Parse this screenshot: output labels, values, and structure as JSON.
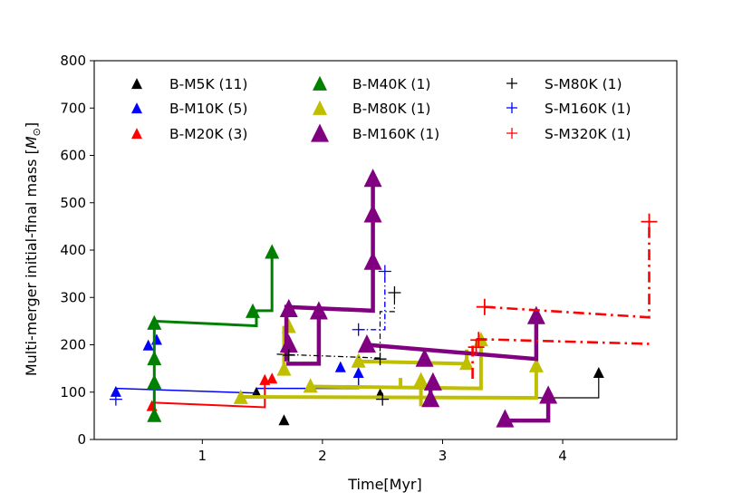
{
  "chart_data": {
    "type": "scatter",
    "title": "",
    "xlabel": "Time[Myr]",
    "ylabel": "Multi-merger initial-final mass [",
    "ylabel_unit_symbol": "M",
    "ylabel_unit_sub": "⊙",
    "ylabel_close": "]",
    "xlim": [
      0.1,
      4.95
    ],
    "ylim": [
      0,
      800
    ],
    "xticks": [
      1,
      2,
      3,
      4
    ],
    "yticks": [
      0,
      100,
      200,
      300,
      400,
      500,
      600,
      700,
      800
    ],
    "grid": false,
    "legend_position": "top",
    "legend": [
      {
        "label": "B-M5K (11)",
        "color": "#000000",
        "marker": "triangle",
        "size": "small"
      },
      {
        "label": "B-M10K (5)",
        "color": "#0000ff",
        "marker": "triangle",
        "size": "small"
      },
      {
        "label": "B-M20K (3)",
        "color": "#ff0000",
        "marker": "triangle",
        "size": "small"
      },
      {
        "label": "B-M40K (1)",
        "color": "#008000",
        "marker": "triangle",
        "size": "medium"
      },
      {
        "label": "B-M80K (1)",
        "color": "#bfbf00",
        "marker": "triangle",
        "size": "medium"
      },
      {
        "label": "B-M160K (1)",
        "color": "#800080",
        "marker": "triangle",
        "size": "large"
      },
      {
        "label": "S-M80K (1)",
        "color": "#000000",
        "marker": "plus",
        "size": "small"
      },
      {
        "label": "S-M160K (1)",
        "color": "#0000ff",
        "marker": "plus",
        "size": "small"
      },
      {
        "label": "S-M320K (1)",
        "color": "#ff0000",
        "marker": "plus",
        "size": "small"
      }
    ],
    "series": [
      {
        "name": "B-M5K (11)",
        "color": "#000000",
        "marker": "triangle",
        "size": 6,
        "width": 1.2,
        "dash": "",
        "lines": [
          [
            [
              2.48,
              88
            ],
            [
              4.3,
              88
            ],
            [
              4.3,
              140
            ]
          ]
        ],
        "points": [
          [
            1.68,
            40
          ],
          [
            1.68,
            150
          ],
          [
            2.48,
            95
          ],
          [
            4.3,
            140
          ],
          [
            1.45,
            98
          ]
        ]
      },
      {
        "name": "B-M10K (5)",
        "color": "#0000ff",
        "marker": "triangle",
        "size": 6,
        "width": 1.5,
        "dash": "",
        "lines": [
          [
            [
              0.28,
              108
            ],
            [
              1.45,
              98
            ]
          ],
          [
            [
              1.45,
              108
            ],
            [
              2.3,
              108
            ],
            [
              2.3,
              140
            ]
          ]
        ],
        "points": [
          [
            0.28,
            100
          ],
          [
            0.55,
            198
          ],
          [
            0.62,
            210
          ],
          [
            2.15,
            152
          ],
          [
            2.3,
            140
          ]
        ]
      },
      {
        "name": "B-M20K (3)",
        "color": "#ff0000",
        "marker": "triangle",
        "size": 6,
        "width": 2,
        "dash": "",
        "lines": [
          [
            [
              0.58,
              78
            ],
            [
              1.52,
              68
            ],
            [
              1.52,
              125
            ]
          ]
        ],
        "points": [
          [
            0.58,
            70
          ],
          [
            1.52,
            125
          ],
          [
            1.58,
            128
          ]
        ]
      },
      {
        "name": "B-M40K (1)",
        "color": "#008000",
        "marker": "triangle",
        "size": 8,
        "width": 3,
        "dash": "",
        "lines": [
          [
            [
              0.6,
              50
            ],
            [
              0.6,
              250
            ],
            [
              1.45,
              240
            ],
            [
              1.45,
              272
            ],
            [
              1.58,
              272
            ],
            [
              1.58,
              395
            ]
          ]
        ],
        "points": [
          [
            0.6,
            50
          ],
          [
            0.6,
            120
          ],
          [
            0.6,
            170
          ],
          [
            0.6,
            245
          ],
          [
            1.42,
            270
          ],
          [
            1.58,
            395
          ]
        ]
      },
      {
        "name": "B-M80K (1)",
        "color": "#bfbf00",
        "marker": "triangle",
        "size": 8,
        "width": 4,
        "dash": "",
        "lines": [
          [
            [
              1.32,
              90
            ],
            [
              3.78,
              88
            ],
            [
              3.78,
              155
            ]
          ],
          [
            [
              1.68,
              148
            ],
            [
              1.68,
              240
            ]
          ],
          [
            [
              1.9,
              112
            ],
            [
              3.32,
              108
            ],
            [
              3.32,
              215
            ]
          ],
          [
            [
              2.3,
              165
            ],
            [
              3.2,
              160
            ],
            [
              3.2,
              190
            ]
          ],
          [
            [
              2.65,
              108
            ],
            [
              2.65,
              130
            ]
          ],
          [
            [
              2.82,
              70
            ],
            [
              2.82,
              125
            ]
          ]
        ],
        "points": [
          [
            1.32,
            88
          ],
          [
            1.68,
            148
          ],
          [
            1.72,
            238
          ],
          [
            1.9,
            112
          ],
          [
            2.3,
            165
          ],
          [
            2.82,
            125
          ],
          [
            3.2,
            160
          ],
          [
            3.32,
            210
          ],
          [
            3.78,
            155
          ]
        ]
      },
      {
        "name": "B-M160K (1)",
        "color": "#800080",
        "marker": "triangle",
        "size": 10,
        "width": 4.5,
        "dash": "",
        "lines": [
          [
            [
              1.7,
              165
            ],
            [
              1.7,
              280
            ],
            [
              2.42,
              272
            ],
            [
              2.42,
              550
            ]
          ],
          [
            [
              1.7,
              160
            ],
            [
              1.97,
              160
            ],
            [
              1.97,
              270
            ]
          ],
          [
            [
              2.37,
              200
            ],
            [
              3.78,
              170
            ],
            [
              3.78,
              260
            ]
          ],
          [
            [
              2.9,
              70
            ],
            [
              2.9,
              120
            ]
          ],
          [
            [
              3.52,
              40
            ],
            [
              3.88,
              40
            ],
            [
              3.88,
              92
            ]
          ]
        ],
        "points": [
          [
            1.72,
            200
          ],
          [
            1.72,
            275
          ],
          [
            1.97,
            270
          ],
          [
            2.37,
            200
          ],
          [
            2.42,
            375
          ],
          [
            2.42,
            475
          ],
          [
            2.42,
            550
          ],
          [
            2.85,
            170
          ],
          [
            2.9,
            85
          ],
          [
            2.92,
            120
          ],
          [
            3.52,
            42
          ],
          [
            3.78,
            260
          ],
          [
            3.88,
            92
          ]
        ]
      },
      {
        "name": "S-M80K (1)",
        "color": "#000000",
        "marker": "plus",
        "size": 7,
        "width": 1.2,
        "dash": "6,3,1.5,3",
        "lines": [
          [
            [
              1.62,
              180
            ],
            [
              2.48,
              172
            ],
            [
              2.48,
              270
            ],
            [
              2.6,
              270
            ],
            [
              2.6,
              310
            ]
          ]
        ],
        "points": [
          [
            1.72,
            178
          ],
          [
            2.48,
            170
          ],
          [
            2.6,
            310
          ],
          [
            2.5,
            85
          ]
        ]
      },
      {
        "name": "S-M160K (1)",
        "color": "#0000ff",
        "marker": "plus",
        "size": 7,
        "width": 1.4,
        "dash": "6,3,1.5,3",
        "lines": [
          [
            [
              2.3,
              232
            ],
            [
              2.52,
              232
            ],
            [
              2.52,
              355
            ]
          ]
        ],
        "points": [
          [
            2.3,
            232
          ],
          [
            2.52,
            355
          ],
          [
            0.28,
            85
          ]
        ]
      },
      {
        "name": "S-M320K (1)",
        "color": "#ff0000",
        "marker": "plus",
        "size": 9,
        "width": 2.6,
        "dash": "12,5,2.5,5",
        "lines": [
          [
            [
              3.35,
              280
            ],
            [
              4.72,
              258
            ],
            [
              4.72,
              460
            ]
          ],
          [
            [
              3.28,
              212
            ],
            [
              4.72,
              202
            ]
          ],
          [
            [
              3.25,
              198
            ],
            [
              3.25,
              125
            ]
          ]
        ],
        "points": [
          [
            3.35,
            280
          ],
          [
            3.3,
            210
          ],
          [
            3.28,
            195
          ],
          [
            4.72,
            460
          ]
        ]
      }
    ]
  }
}
